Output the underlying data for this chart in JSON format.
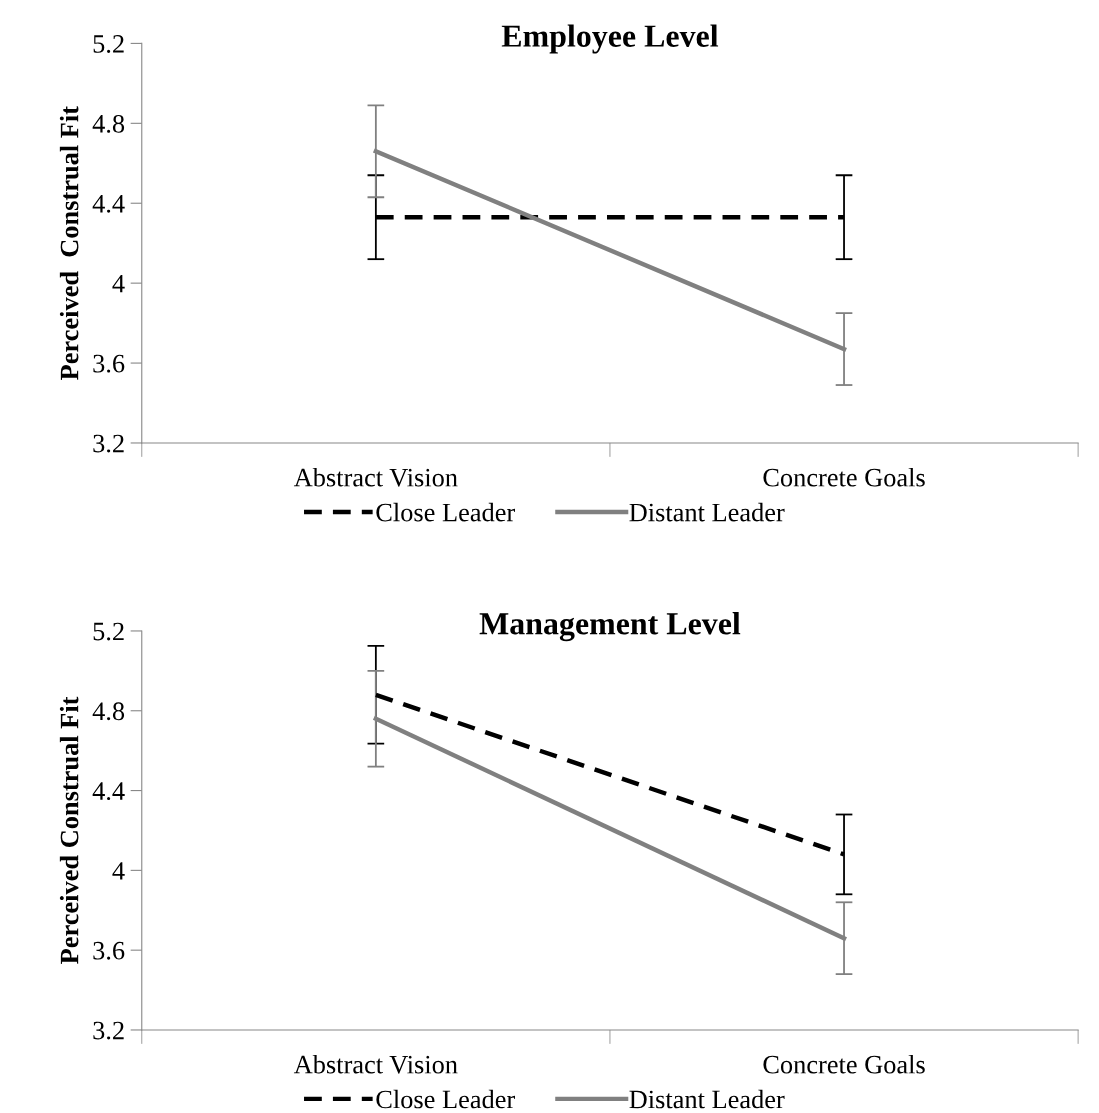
{
  "chart_data": [
    {
      "type": "line",
      "title": "Employee Level",
      "ylabel": "Perceived  Construal Fit",
      "categories": [
        "Abstract Vision",
        "Concrete Goals"
      ],
      "ylim": [
        3.2,
        5.2
      ],
      "yticks": [
        3.2,
        3.6,
        4.4,
        4.8,
        5.2,
        {
          "value": 4,
          "label": "4"
        }
      ],
      "legend": "bottom",
      "grid": false,
      "marker": "none",
      "series": [
        {
          "name": "Close Leader",
          "color": "#000000",
          "line_style": "dashed",
          "values": [
            4.33,
            4.33
          ],
          "errors": [
            0.21,
            0.21
          ]
        },
        {
          "name": "Distant Leader",
          "color": "#808080",
          "line_style": "solid",
          "values": [
            4.66,
            3.67
          ],
          "errors": [
            0.23,
            0.18
          ]
        }
      ]
    },
    {
      "type": "line",
      "title": "Management Level",
      "ylabel": "Perceived Construal Fit",
      "categories": [
        "Abstract Vision",
        "Concrete Goals"
      ],
      "ylim": [
        3.2,
        5.2
      ],
      "yticks": [
        3.2,
        3.6,
        4.4,
        4.8,
        5.2,
        {
          "value": 4,
          "label": "4"
        }
      ],
      "legend": "bottom",
      "grid": false,
      "marker": "none",
      "series": [
        {
          "name": "Close Leader",
          "color": "#000000",
          "line_style": "dashed",
          "values": [
            4.88,
            4.08
          ],
          "errors": [
            0.245,
            0.2
          ]
        },
        {
          "name": "Distant Leader",
          "color": "#808080",
          "line_style": "solid",
          "values": [
            4.76,
            3.66
          ],
          "errors": [
            0.24,
            0.18
          ]
        }
      ]
    }
  ]
}
